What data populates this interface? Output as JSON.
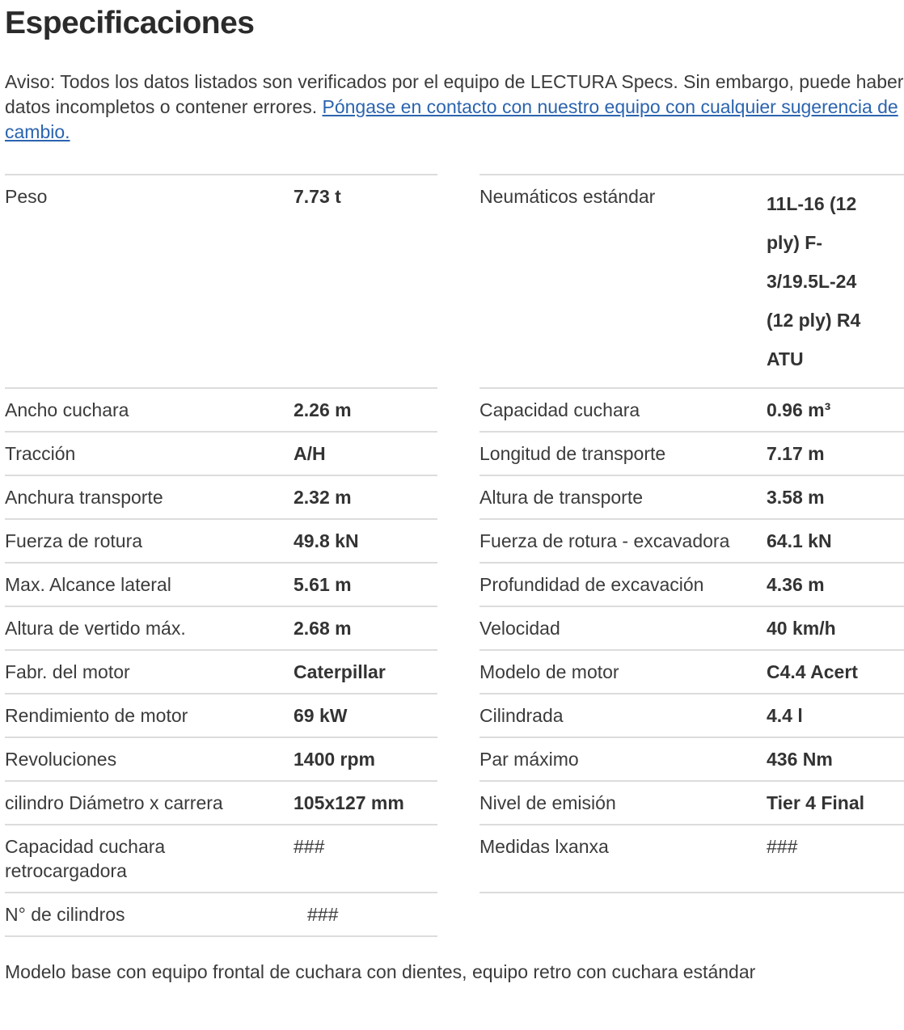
{
  "header": {
    "title": "Especificaciones"
  },
  "notice": {
    "text": "Aviso: Todos los datos listados son verificados por el equipo de LECTURA Specs. Sin embargo, puede haber datos incompletos o contener errores. ",
    "link_label": "Póngase en contacto con nuestro equipo con cualquier sugerencia de cambio."
  },
  "specs": {
    "rows": [
      {
        "left_label": "Peso",
        "left_value": "7.73 t",
        "right_label": "Neumáticos estándar",
        "right_value": "11L-16 (12 ply) F-3/19.5L-24 (12 ply) R4 ATU"
      },
      {
        "left_label": "Ancho cuchara",
        "left_value": "2.26 m",
        "right_label": "Capacidad cuchara",
        "right_value": "0.96 m³"
      },
      {
        "left_label": "Tracción",
        "left_value": "A/H",
        "right_label": "Longitud de transporte",
        "right_value": "7.17 m"
      },
      {
        "left_label": "Anchura transporte",
        "left_value": "2.32 m",
        "right_label": "Altura de transporte",
        "right_value": "3.58 m"
      },
      {
        "left_label": "Fuerza de rotura",
        "left_value": "49.8 kN",
        "right_label": "Fuerza de rotura - excavadora",
        "right_value": "64.1 kN"
      },
      {
        "left_label": "Max. Alcance lateral",
        "left_value": "5.61 m",
        "right_label": "Profundidad de excavación",
        "right_value": "4.36 m"
      },
      {
        "left_label": "Altura de vertido máx.",
        "left_value": "2.68 m",
        "right_label": "Velocidad",
        "right_value": "40 km/h"
      },
      {
        "left_label": "Fabr. del motor",
        "left_value": "Caterpillar",
        "right_label": "Modelo de motor",
        "right_value": "C4.4 Acert"
      },
      {
        "left_label": "Rendimiento de motor",
        "left_value": "69 kW",
        "right_label": "Cilindrada",
        "right_value": "4.4 l"
      },
      {
        "left_label": "Revoluciones",
        "left_value": "1400 rpm",
        "right_label": "Par máximo",
        "right_value": "436 Nm"
      },
      {
        "left_label": "cilindro Diámetro x carrera",
        "left_value": "105x127 mm",
        "right_label": "Nivel de emisión",
        "right_value": "Tier 4 Final"
      },
      {
        "left_label": "Capacidad cuchara retrocargadora",
        "left_value": "###",
        "right_label": "Medidas lxanxa",
        "right_value": "###"
      },
      {
        "left_label": "N° de cilindros",
        "left_value": "###",
        "right_label": "",
        "right_value": ""
      }
    ]
  },
  "footer": {
    "note": "Modelo base con equipo frontal de cuchara con dientes, equipo retro con cuchara estándar"
  },
  "colors": {
    "link_blue": "#2b64af",
    "text_gray": "#3b3b3b",
    "value_dark": "#333333",
    "divider_gray": "#dcdcdc"
  }
}
